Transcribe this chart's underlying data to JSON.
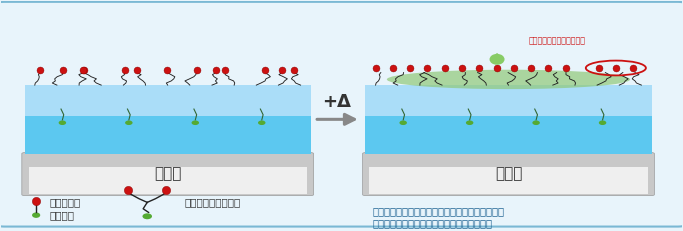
{
  "bg_color": "#e8f4fb",
  "border_color": "#7ab8d4",
  "substrate_color_top": "#c8c8c8",
  "substrate_color_bottom": "#efefef",
  "coating_color_top": "#5cc8f0",
  "coating_color_bottom": "#aaddf8",
  "green_bump_color": "#90c878",
  "red_dot_color": "#cc1111",
  "green_leaf_color": "#55aa33",
  "chain_color": "#222222",
  "arrow_color": "#888888",
  "text_color_dark": "#333333",
  "text_color_blue": "#1a6090",
  "text_color_red": "#cc1111",
  "legend_label_red": "含フッ素基",
  "legend_label_green": "相溶性基",
  "legend_label_surfactant": "フッ素系界面活性剤",
  "base_material_label": "基　材",
  "arrow_label": "+Δ",
  "note_line1": "・外部刺激（加熱）により含フッ素基が脱離し、",
  "note_line2": "　重ね塗りしたい液体の濡れ性を向上させる",
  "evaporation_label": "塗膜表面から脱離（揮発）"
}
